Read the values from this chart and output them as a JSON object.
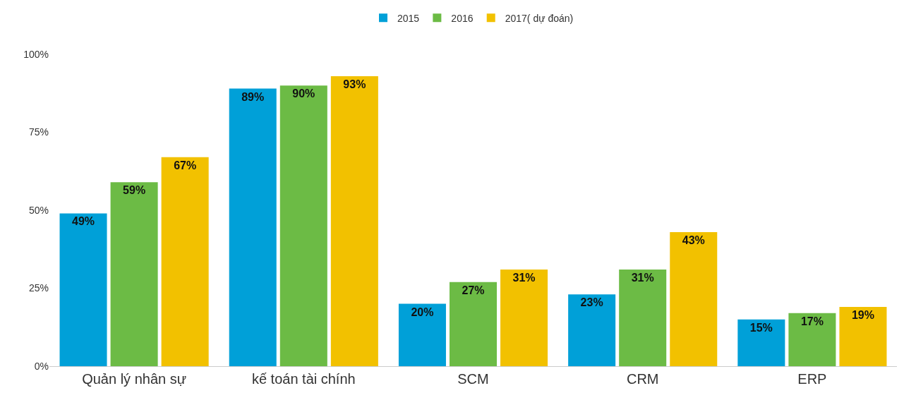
{
  "chart_data": {
    "type": "bar",
    "categories": [
      "Quản lý nhân sự",
      "kế toán tài chính",
      "SCM",
      "CRM",
      "ERP"
    ],
    "series": [
      {
        "name": "2015",
        "color": "#00a0d8",
        "values": [
          49,
          89,
          20,
          23,
          15
        ],
        "value_labels": [
          "49%",
          "89%",
          "20%",
          "23%",
          "15%"
        ]
      },
      {
        "name": "2016",
        "color": "#6cbb45",
        "values": [
          59,
          90,
          27,
          31,
          17
        ],
        "value_labels": [
          "59%",
          "90%",
          "27%",
          "31%",
          "17%"
        ]
      },
      {
        "name": "2017( dự đoán)",
        "color": "#f2c100",
        "values": [
          67,
          93,
          31,
          43,
          19
        ],
        "value_labels": [
          "67%",
          "93%",
          "31%",
          "43%",
          "19%"
        ]
      }
    ],
    "ylim": [
      0,
      100
    ],
    "yticks": [
      {
        "value": 0,
        "label": "0%"
      },
      {
        "value": 25,
        "label": "25%"
      },
      {
        "value": 50,
        "label": "50%"
      },
      {
        "value": 75,
        "label": "75%"
      },
      {
        "value": 100,
        "label": "100%"
      }
    ],
    "legend": "top"
  }
}
